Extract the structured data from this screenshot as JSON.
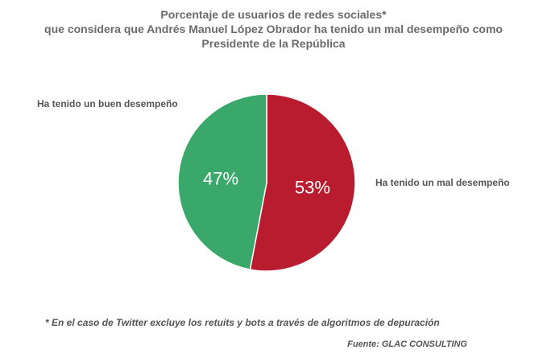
{
  "chart_data": {
    "type": "pie",
    "title_lines": [
      "Porcentaje de usuarios de redes sociales*",
      "que considera que Andrés Manuel López Obrador ha tenido un mal desempeño como",
      "Presidente de la República"
    ],
    "slices": [
      {
        "label": "Ha tenido un mal desempeño",
        "value": 53,
        "value_label": "53%",
        "color": "#b81c2e"
      },
      {
        "label": "Ha tenido un buen desempeño",
        "value": 47,
        "value_label": "47%",
        "color": "#3aa86b"
      }
    ],
    "footnote": "* En el caso de Twitter excluye los retuits y bots a través de algoritmos de depuración",
    "source": "Fuente: GLAC CONSULTING"
  }
}
